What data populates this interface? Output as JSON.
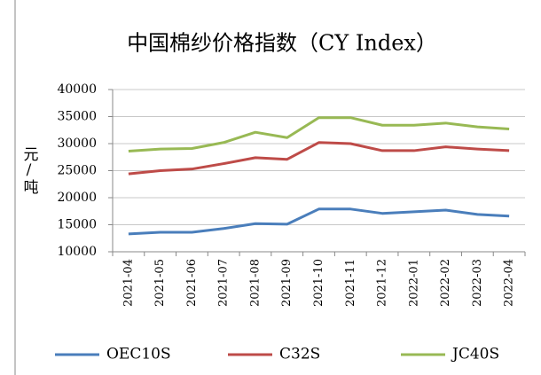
{
  "chart_data": {
    "type": "line",
    "title": "中国棉纱价格指数（CY Index）",
    "y_label": "元/吨",
    "categories": [
      "2021-04",
      "2021-05",
      "2021-06",
      "2021-07",
      "2021-08",
      "2021-09",
      "2021-10",
      "2021-11",
      "2021-12",
      "2022-01",
      "2022-02",
      "2022-03",
      "2022-04"
    ],
    "series": [
      {
        "name": "OEC10S",
        "color": "#4a7ebb",
        "values": [
          13300,
          13600,
          13600,
          14300,
          15200,
          15100,
          17900,
          17900,
          17100,
          17400,
          17700,
          16900,
          16600
        ]
      },
      {
        "name": "C32S",
        "color": "#be4b48",
        "values": [
          24400,
          25000,
          25300,
          26300,
          27400,
          27100,
          30200,
          30000,
          28700,
          28700,
          29400,
          29000,
          28700
        ]
      },
      {
        "name": "JC40S",
        "color": "#98b954",
        "values": [
          28600,
          29000,
          29100,
          30200,
          32100,
          31100,
          34800,
          34800,
          33400,
          33400,
          33800,
          33100,
          32700
        ]
      }
    ],
    "ylim": [
      10000,
      40000
    ],
    "yticks": [
      10000,
      15000,
      20000,
      25000,
      30000,
      35000,
      40000
    ],
    "grid": true,
    "legend": "bottom"
  }
}
